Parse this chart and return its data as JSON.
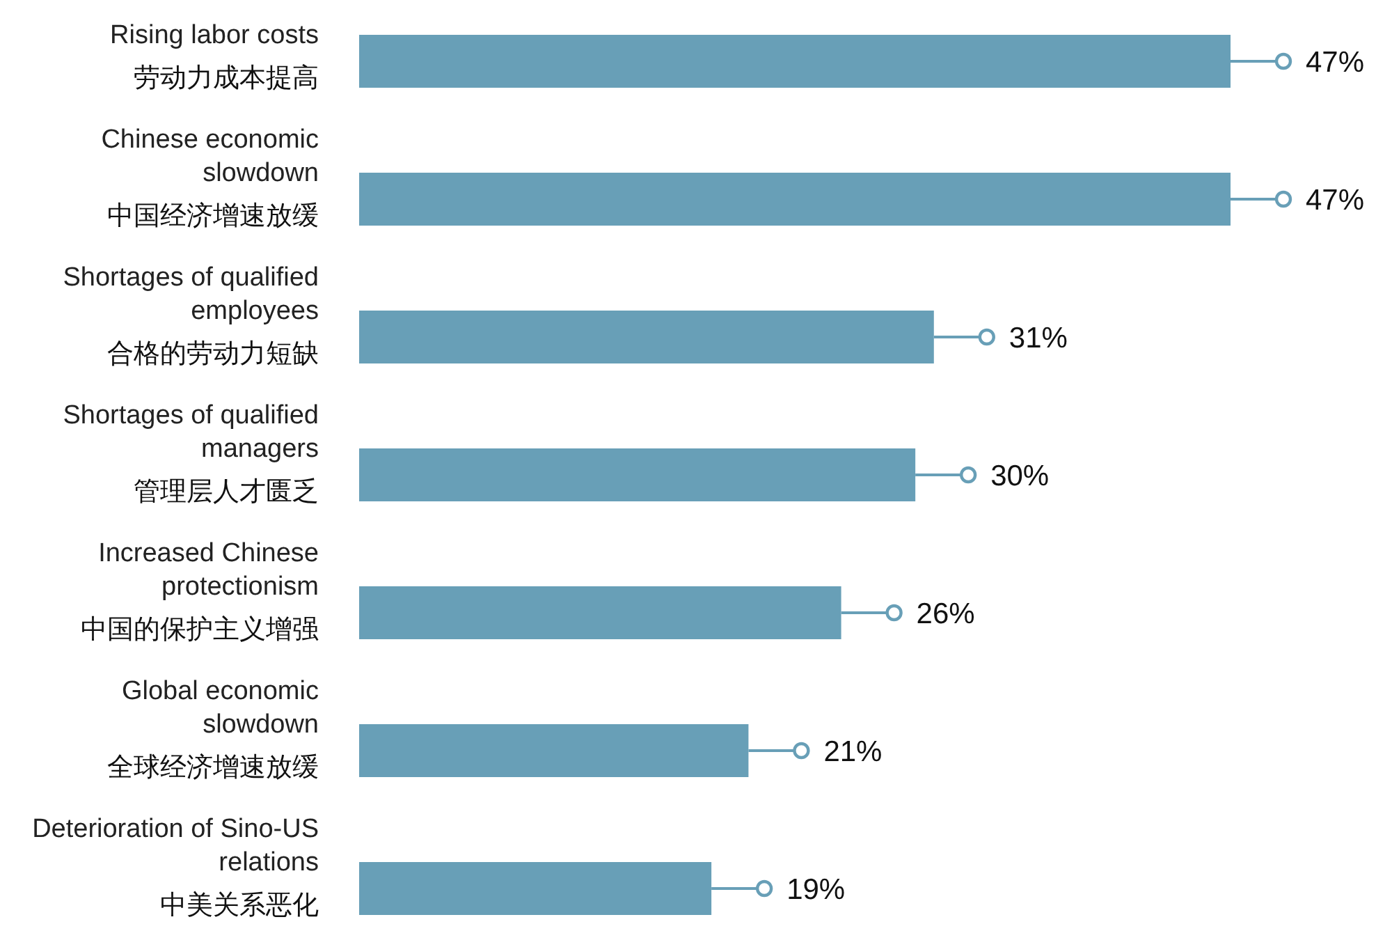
{
  "chart_data": {
    "type": "bar",
    "orientation": "horizontal",
    "categories": [
      "Rising labor costs\n劳动力成本提高",
      "Chinese economic slowdown\n中国经济增速放缓",
      "Shortages of qualified employees\n合格的劳动力短缺",
      "Shortages of qualified managers\n管理层人才匮乏",
      "Increased Chinese protectionism\n中国的保护主义增强",
      "Global economic slowdown\n全球经济增速放缓",
      "Deterioration of Sino-US relations\n中美关系恶化"
    ],
    "values": [
      47,
      47,
      31,
      30,
      26,
      21,
      19
    ],
    "color": "#689fb7",
    "value_labels": [
      "47%",
      "47%",
      "31%",
      "30%",
      "26%",
      "21%",
      "19%"
    ],
    "marker": "circle"
  }
}
